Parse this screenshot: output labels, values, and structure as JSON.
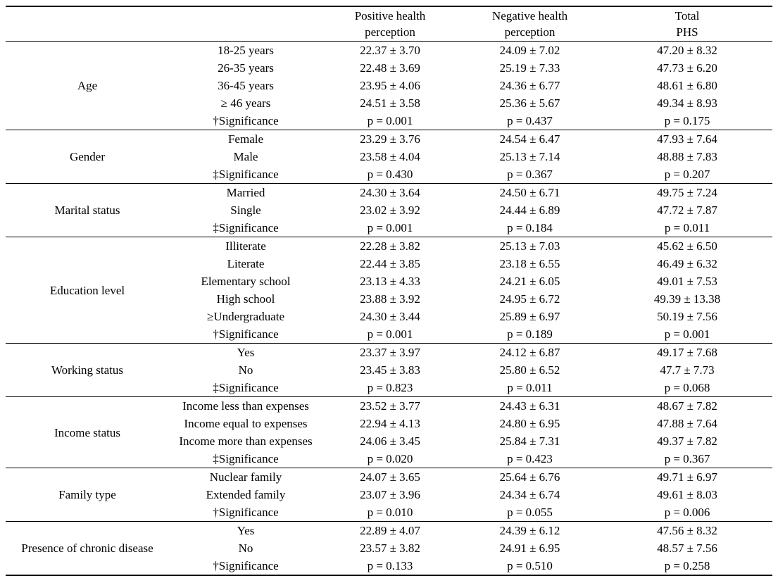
{
  "table": {
    "header": {
      "category": "",
      "subcategory": "",
      "col_positive": {
        "line1": "Positive health",
        "line2": "perception"
      },
      "col_negative": {
        "line1": "Negative health",
        "line2": "perception"
      },
      "col_total": {
        "line1": "Total",
        "line2": "PHS"
      }
    },
    "groups": [
      {
        "category": "Age",
        "rows": [
          {
            "label": "18-25 years",
            "values": [
              "22.37 ± 3.70",
              "24.09 ± 7.02",
              "47.20 ± 8.32"
            ]
          },
          {
            "label": "26-35 years",
            "values": [
              "22.48 ± 3.69",
              "25.19 ± 7.33",
              "47.73 ± 6.20"
            ]
          },
          {
            "label": "36-45 years",
            "values": [
              "23.95 ± 4.06",
              "24.36 ± 6.77",
              "48.61 ± 6.80"
            ]
          },
          {
            "label": "≥ 46 years",
            "values": [
              "24.51 ± 3.58",
              "25.36 ± 5.67",
              "49.34 ± 8.93"
            ]
          },
          {
            "label": "†Significance",
            "values": [
              "p = 0.001",
              "p = 0.437",
              "p = 0.175"
            ]
          }
        ]
      },
      {
        "category": "Gender",
        "rows": [
          {
            "label": "Female",
            "values": [
              "23.29 ± 3.76",
              "24.54 ± 6.47",
              "47.93 ± 7.64"
            ]
          },
          {
            "label": "Male",
            "values": [
              "23.58 ± 4.04",
              "25.13 ± 7.14",
              "48.88 ± 7.83"
            ]
          },
          {
            "label": "‡Significance",
            "values": [
              "p = 0.430",
              "p = 0.367",
              "p = 0.207"
            ]
          }
        ]
      },
      {
        "category": "Marital status",
        "rows": [
          {
            "label": "Married",
            "values": [
              "24.30 ± 3.64",
              "24.50 ± 6.71",
              "49.75 ± 7.24"
            ]
          },
          {
            "label": "Single",
            "values": [
              "23.02 ± 3.92",
              "24.44 ± 6.89",
              "47.72 ± 7.87"
            ]
          },
          {
            "label": "‡Significance",
            "values": [
              "p = 0.001",
              "p = 0.184",
              "p = 0.011"
            ]
          }
        ]
      },
      {
        "category": "Education level",
        "rows": [
          {
            "label": "Illiterate",
            "values": [
              "22.28 ± 3.82",
              "25.13 ± 7.03",
              "45.62 ± 6.50"
            ]
          },
          {
            "label": "Literate",
            "values": [
              "22.44 ± 3.85",
              "23.18 ± 6.55",
              "46.49 ± 6.32"
            ]
          },
          {
            "label": "Elementary school",
            "values": [
              "23.13 ± 4.33",
              "24.21 ± 6.05",
              "49.01 ± 7.53"
            ]
          },
          {
            "label": "High school",
            "values": [
              "23.88 ± 3.92",
              "24.95 ± 6.72",
              "49.39 ± 13.38"
            ]
          },
          {
            "label": "≥Undergraduate",
            "values": [
              "24.30 ± 3.44",
              "25.89 ± 6.97",
              "50.19 ± 7.56"
            ]
          },
          {
            "label": "†Significance",
            "values": [
              "p = 0.001",
              "p = 0.189",
              "p = 0.001"
            ]
          }
        ]
      },
      {
        "category": "Working status",
        "rows": [
          {
            "label": "Yes",
            "values": [
              "23.37 ± 3.97",
              "24.12 ± 6.87",
              "49.17 ± 7.68"
            ]
          },
          {
            "label": "No",
            "values": [
              "23.45 ± 3.83",
              "25.80 ± 6.52",
              "47.7 ± 7.73"
            ]
          },
          {
            "label": "‡Significance",
            "values": [
              "p = 0.823",
              "p = 0.011",
              "p = 0.068"
            ]
          }
        ]
      },
      {
        "category": "Income status",
        "rows": [
          {
            "label": "Income less than expenses",
            "values": [
              "23.52 ± 3.77",
              "24.43 ± 6.31",
              "48.67 ± 7.82"
            ]
          },
          {
            "label": "Income equal to expenses",
            "values": [
              "22.94 ± 4.13",
              "24.80 ± 6.95",
              "47.88 ± 7.64"
            ]
          },
          {
            "label": "Income more than expenses",
            "values": [
              "24.06 ± 3.45",
              "25.84 ± 7.31",
              "49.37 ± 7.82"
            ]
          },
          {
            "label": "‡Significance",
            "values": [
              "p = 0.020",
              "p = 0.423",
              "p = 0.367"
            ]
          }
        ]
      },
      {
        "category": "Family type",
        "rows": [
          {
            "label": "Nuclear family",
            "values": [
              "24.07 ± 3.65",
              "25.64 ± 6.76",
              "49.71 ± 6.97"
            ]
          },
          {
            "label": "Extended family",
            "values": [
              "23.07 ± 3.96",
              "24.34 ± 6.74",
              "49.61 ± 8.03"
            ]
          },
          {
            "label": "†Significance",
            "values": [
              "p = 0.010",
              "p = 0.055",
              "p = 0.006"
            ]
          }
        ]
      },
      {
        "category": "Presence of chronic disease",
        "rows": [
          {
            "label": "Yes",
            "values": [
              "22.89 ± 4.07",
              "24.39 ± 6.12",
              "47.56 ± 8.32"
            ]
          },
          {
            "label": "No",
            "values": [
              "23.57 ± 3.82",
              "24.91 ± 6.95",
              "48.57 ± 7.56"
            ]
          },
          {
            "label": "†Significance",
            "values": [
              "p = 0.133",
              "p = 0.510",
              "p = 0.258"
            ]
          }
        ]
      }
    ]
  }
}
